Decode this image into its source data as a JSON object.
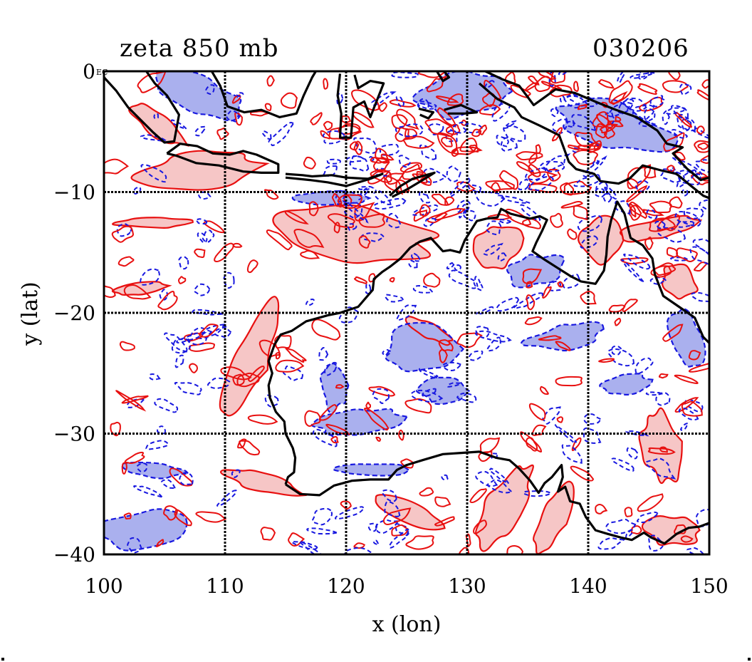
{
  "title": "zeta 850 mb",
  "date": "030206",
  "corner_label": "EC",
  "colors": {
    "positive_fill": "#f6c6c6",
    "positive_line": "#e81010",
    "negative_fill": "#aab0ee",
    "negative_line": "#1818e0",
    "coast": "#000000",
    "grid": "#000000"
  },
  "chart_data": {
    "type": "contour-map",
    "xlabel": "x (lon)",
    "ylabel": "y (lat)",
    "xlim": [
      100,
      150
    ],
    "ylim": [
      -40,
      0
    ],
    "x_ticks": [
      {
        "value": 100,
        "label": "100"
      },
      {
        "value": 110,
        "label": "110"
      },
      {
        "value": 120,
        "label": "120"
      },
      {
        "value": 130,
        "label": "130"
      },
      {
        "value": 140,
        "label": "140"
      },
      {
        "value": 150,
        "label": "150"
      }
    ],
    "y_ticks": [
      {
        "value": 0,
        "label": "0"
      },
      {
        "value": -10,
        "label": "−10"
      },
      {
        "value": -20,
        "label": "−20"
      },
      {
        "value": -30,
        "label": "−30"
      },
      {
        "value": -40,
        "label": "−40"
      }
    ],
    "grid": true,
    "grid_lon": [
      110,
      120,
      130,
      140
    ],
    "grid_lat": [
      -10,
      -20,
      -30
    ],
    "coastline_australia": [
      [
        115.0,
        -34.2
      ],
      [
        115.2,
        -33.6
      ],
      [
        115.7,
        -33.2
      ],
      [
        115.8,
        -32.0
      ],
      [
        115.6,
        -31.2
      ],
      [
        115.0,
        -30.0
      ],
      [
        114.9,
        -29.0
      ],
      [
        114.2,
        -28.2
      ],
      [
        113.7,
        -27.0
      ],
      [
        113.6,
        -26.0
      ],
      [
        113.9,
        -25.0
      ],
      [
        113.6,
        -24.0
      ],
      [
        114.1,
        -22.6
      ],
      [
        114.6,
        -21.8
      ],
      [
        115.5,
        -21.5
      ],
      [
        116.7,
        -20.7
      ],
      [
        118.5,
        -20.2
      ],
      [
        119.5,
        -20.0
      ],
      [
        121.0,
        -19.5
      ],
      [
        122.2,
        -18.1
      ],
      [
        122.3,
        -17.2
      ],
      [
        123.0,
        -16.6
      ],
      [
        123.6,
        -16.2
      ],
      [
        124.5,
        -15.5
      ],
      [
        125.3,
        -14.6
      ],
      [
        126.1,
        -14.1
      ],
      [
        127.0,
        -13.8
      ],
      [
        128.0,
        -14.9
      ],
      [
        128.6,
        -14.8
      ],
      [
        129.4,
        -15.0
      ],
      [
        129.8,
        -14.0
      ],
      [
        130.3,
        -13.2
      ],
      [
        130.8,
        -12.4
      ],
      [
        131.6,
        -12.2
      ],
      [
        132.5,
        -12.1
      ],
      [
        132.8,
        -11.4
      ],
      [
        133.6,
        -11.8
      ],
      [
        134.4,
        -12.0
      ],
      [
        135.2,
        -12.2
      ],
      [
        136.0,
        -12.0
      ],
      [
        136.6,
        -12.3
      ],
      [
        136.2,
        -13.2
      ],
      [
        135.7,
        -14.2
      ],
      [
        135.4,
        -14.9
      ],
      [
        136.4,
        -15.6
      ],
      [
        137.5,
        -16.3
      ],
      [
        138.6,
        -17.0
      ],
      [
        139.4,
        -17.4
      ],
      [
        140.6,
        -17.6
      ],
      [
        141.3,
        -16.5
      ],
      [
        141.5,
        -15.2
      ],
      [
        141.6,
        -13.7
      ],
      [
        141.9,
        -12.3
      ],
      [
        142.4,
        -10.8
      ],
      [
        143.0,
        -11.8
      ],
      [
        143.5,
        -13.8
      ],
      [
        144.5,
        -14.4
      ],
      [
        145.3,
        -15.5
      ],
      [
        145.5,
        -16.8
      ],
      [
        146.2,
        -18.6
      ],
      [
        147.5,
        -19.5
      ],
      [
        148.8,
        -20.4
      ],
      [
        149.5,
        -22.0
      ],
      [
        150.0,
        -22.5
      ]
    ],
    "coastline_south": [
      [
        115.0,
        -34.2
      ],
      [
        116.2,
        -35.0
      ],
      [
        117.8,
        -35.1
      ],
      [
        119.0,
        -34.3
      ],
      [
        120.5,
        -33.9
      ],
      [
        122.0,
        -33.8
      ],
      [
        123.5,
        -33.8
      ],
      [
        124.2,
        -33.0
      ],
      [
        125.0,
        -32.6
      ],
      [
        126.3,
        -32.2
      ],
      [
        128.0,
        -31.7
      ],
      [
        129.5,
        -31.6
      ],
      [
        131.0,
        -31.5
      ],
      [
        132.4,
        -32.0
      ],
      [
        133.5,
        -32.2
      ],
      [
        134.3,
        -32.9
      ],
      [
        135.2,
        -33.9
      ],
      [
        135.9,
        -34.9
      ],
      [
        136.4,
        -34.1
      ],
      [
        137.0,
        -33.6
      ],
      [
        137.8,
        -32.6
      ],
      [
        137.9,
        -33.6
      ],
      [
        137.5,
        -34.8
      ],
      [
        138.1,
        -34.4
      ],
      [
        138.5,
        -35.6
      ],
      [
        139.3,
        -35.8
      ],
      [
        139.8,
        -36.9
      ],
      [
        140.6,
        -38.0
      ],
      [
        141.6,
        -38.3
      ],
      [
        142.7,
        -38.6
      ],
      [
        143.6,
        -38.8
      ],
      [
        144.6,
        -38.2
      ],
      [
        145.2,
        -38.6
      ],
      [
        146.3,
        -39.1
      ],
      [
        147.3,
        -38.3
      ],
      [
        148.3,
        -37.8
      ],
      [
        149.2,
        -37.7
      ],
      [
        150.0,
        -37.4
      ]
    ],
    "coastline_sumatra": [
      [
        100.0,
        -0.5
      ],
      [
        101.0,
        -1.6
      ],
      [
        102.0,
        -3.0
      ],
      [
        103.0,
        -4.0
      ],
      [
        104.0,
        -5.0
      ],
      [
        105.0,
        -5.9
      ],
      [
        105.8,
        -5.8
      ],
      [
        106.2,
        -3.6
      ],
      [
        105.2,
        -2.0
      ],
      [
        104.2,
        -1.0
      ],
      [
        103.5,
        0.0
      ]
    ],
    "coastline_java": [
      [
        105.2,
        -6.8
      ],
      [
        106.3,
        -6.0
      ],
      [
        107.7,
        -6.2
      ],
      [
        109.0,
        -6.8
      ],
      [
        110.4,
        -6.9
      ],
      [
        111.5,
        -6.6
      ],
      [
        112.6,
        -6.9
      ],
      [
        114.4,
        -7.7
      ],
      [
        114.4,
        -8.4
      ],
      [
        113.0,
        -8.4
      ],
      [
        111.5,
        -8.3
      ],
      [
        109.5,
        -7.8
      ],
      [
        107.6,
        -7.6
      ],
      [
        106.0,
        -7.0
      ],
      [
        105.2,
        -6.8
      ]
    ],
    "coastline_borneo": [
      [
        108.9,
        0.0
      ],
      [
        109.6,
        -1.2
      ],
      [
        110.2,
        -2.9
      ],
      [
        111.6,
        -3.4
      ],
      [
        113.0,
        -3.2
      ],
      [
        114.5,
        -3.8
      ],
      [
        115.9,
        -3.5
      ],
      [
        116.5,
        -2.0
      ],
      [
        117.2,
        -0.5
      ],
      [
        117.5,
        0.0
      ]
    ],
    "coastline_sulawesi": [
      [
        119.5,
        -0.2
      ],
      [
        119.3,
        -2.0
      ],
      [
        119.6,
        -3.5
      ],
      [
        119.5,
        -5.5
      ],
      [
        120.4,
        -5.5
      ],
      [
        120.6,
        -3.0
      ],
      [
        121.5,
        -2.5
      ],
      [
        122.0,
        -3.8
      ],
      [
        123.1,
        -1.0
      ],
      [
        122.0,
        -0.8
      ],
      [
        121.0,
        -1.4
      ],
      [
        120.7,
        -0.3
      ]
    ],
    "coastline_nusa": [
      [
        115.0,
        -8.5
      ],
      [
        116.4,
        -8.6
      ],
      [
        117.2,
        -8.7
      ],
      [
        118.8,
        -8.6
      ],
      [
        120.0,
        -8.8
      ],
      [
        121.8,
        -8.9
      ],
      [
        123.0,
        -8.5
      ],
      [
        122.0,
        -8.9
      ],
      [
        120.0,
        -9.5
      ],
      [
        118.5,
        -9.2
      ],
      [
        117.0,
        -9.0
      ],
      [
        115.0,
        -8.8
      ]
    ],
    "coastline_timor": [
      [
        123.6,
        -10.3
      ],
      [
        124.5,
        -9.5
      ],
      [
        125.5,
        -8.9
      ],
      [
        127.3,
        -8.4
      ],
      [
        126.5,
        -8.9
      ],
      [
        125.0,
        -9.8
      ],
      [
        123.8,
        -10.4
      ]
    ],
    "coastline_newguinea": [
      [
        131.0,
        -1.0
      ],
      [
        132.5,
        -2.3
      ],
      [
        133.9,
        -3.0
      ],
      [
        134.5,
        -3.8
      ],
      [
        136.0,
        -4.5
      ],
      [
        137.6,
        -5.3
      ],
      [
        138.4,
        -7.5
      ],
      [
        139.0,
        -8.1
      ],
      [
        140.5,
        -8.5
      ],
      [
        141.0,
        -9.1
      ],
      [
        142.5,
        -9.3
      ],
      [
        143.4,
        -8.9
      ],
      [
        144.5,
        -7.8
      ],
      [
        146.0,
        -8.2
      ],
      [
        147.3,
        -8.5
      ],
      [
        148.5,
        -9.5
      ],
      [
        149.5,
        -10.3
      ],
      [
        150.0,
        -10.5
      ]
    ],
    "coastline_nguinea_north": [
      [
        131.5,
        0.0
      ],
      [
        133.0,
        -0.7
      ],
      [
        134.3,
        -1.2
      ],
      [
        135.5,
        -2.8
      ],
      [
        137.3,
        -1.5
      ],
      [
        138.9,
        -1.8
      ],
      [
        140.8,
        -2.6
      ],
      [
        142.3,
        -3.2
      ],
      [
        144.0,
        -3.8
      ],
      [
        145.7,
        -4.9
      ],
      [
        146.5,
        -6.0
      ],
      [
        147.8,
        -6.3
      ],
      [
        147.0,
        -6.8
      ],
      [
        148.2,
        -8.1
      ],
      [
        149.3,
        -9.0
      ],
      [
        150.0,
        -8.8
      ]
    ],
    "coastline_halmahera": [
      [
        127.5,
        0.0
      ],
      [
        128.0,
        -0.8
      ],
      [
        128.5,
        -0.5
      ],
      [
        128.1,
        0.0
      ]
    ],
    "coastline_buru_seram": [
      [
        126.0,
        -3.1
      ],
      [
        127.2,
        -3.4
      ],
      [
        126.8,
        -3.9
      ],
      [
        126.1,
        -3.6
      ]
    ],
    "coastline_seram": [
      [
        128.1,
        -3.2
      ],
      [
        129.5,
        -2.8
      ],
      [
        130.8,
        -3.4
      ],
      [
        129.8,
        -3.5
      ],
      [
        128.4,
        -3.5
      ]
    ]
  }
}
